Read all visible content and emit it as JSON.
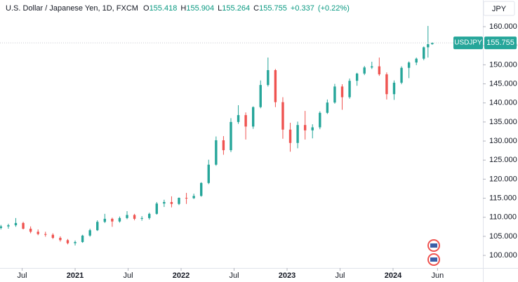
{
  "chart_data": {
    "type": "candlestick",
    "title": "U.S. Dollar / Japanese Yen, 1D, FXCM",
    "ohlc_labels": [
      "O",
      "H",
      "L",
      "C"
    ],
    "change": "+0.337",
    "change_pct": "(+0.22%)",
    "currency": "JPY",
    "symbol": "USDJPY",
    "up_color": "#26a69a",
    "down_color": "#ef5350",
    "x": [
      2020.3,
      2020.37,
      2020.44,
      2020.51,
      2020.58,
      2020.65,
      2020.72,
      2020.79,
      2020.86,
      2020.93,
      2021.0,
      2021.07,
      2021.14,
      2021.21,
      2021.28,
      2021.35,
      2021.42,
      2021.49,
      2021.56,
      2021.63,
      2021.7,
      2021.77,
      2021.84,
      2021.91,
      2021.98,
      2022.05,
      2022.12,
      2022.19,
      2022.26,
      2022.33,
      2022.4,
      2022.47,
      2022.54,
      2022.61,
      2022.68,
      2022.75,
      2022.82,
      2022.89,
      2022.96,
      2023.03,
      2023.1,
      2023.17,
      2023.24,
      2023.31,
      2023.38,
      2023.45,
      2023.52,
      2023.59,
      2023.66,
      2023.73,
      2023.8,
      2023.87,
      2023.94,
      2024.01,
      2024.08,
      2024.15,
      2024.22,
      2024.29,
      2024.33,
      2024.37
    ],
    "open": [
      107.2,
      107.6,
      107.9,
      108.5,
      107.0,
      106.2,
      105.6,
      105.4,
      104.6,
      104.0,
      103.2,
      103.5,
      105.2,
      106.6,
      108.8,
      109.6,
      108.9,
      109.8,
      110.6,
      109.6,
      109.8,
      110.9,
      113.6,
      114.0,
      113.5,
      115.1,
      115.0,
      115.6,
      119.0,
      123.8,
      130.2,
      127.6,
      135.0,
      136.8,
      133.8,
      138.9,
      144.7,
      148.6,
      140.2,
      133.0,
      129.5,
      134.2,
      132.8,
      133.6,
      137.4,
      140.1,
      144.3,
      141.5,
      145.8,
      147.7,
      149.3,
      149.6,
      147.5,
      142.3,
      145.3,
      149.2,
      150.6,
      151.6,
      154.6,
      155.418
    ],
    "high": [
      108.0,
      108.3,
      109.8,
      108.8,
      107.6,
      106.8,
      106.2,
      105.8,
      105.0,
      104.3,
      103.9,
      105.4,
      107.0,
      109.2,
      110.9,
      109.9,
      110.2,
      111.6,
      110.9,
      110.3,
      111.2,
      114.0,
      114.6,
      115.5,
      115.2,
      116.4,
      116.2,
      119.2,
      125.1,
      131.2,
      131.3,
      136.0,
      139.4,
      137.5,
      139.1,
      145.9,
      151.9,
      148.9,
      141.5,
      134.8,
      135.1,
      137.9,
      134.4,
      137.8,
      140.9,
      145.0,
      144.9,
      146.4,
      147.9,
      149.7,
      150.8,
      151.9,
      148.0,
      145.9,
      149.6,
      150.9,
      151.9,
      154.8,
      160.2,
      155.904
    ],
    "low": [
      106.8,
      107.0,
      107.5,
      106.8,
      105.8,
      105.3,
      104.9,
      104.3,
      103.6,
      102.9,
      102.6,
      103.3,
      104.9,
      106.4,
      108.5,
      107.5,
      108.6,
      109.5,
      109.2,
      109.1,
      109.4,
      110.7,
      112.7,
      112.6,
      113.2,
      113.5,
      114.8,
      115.4,
      118.7,
      123.5,
      126.4,
      127.1,
      134.5,
      130.4,
      133.2,
      138.6,
      144.3,
      138.9,
      130.6,
      127.2,
      128.1,
      130.4,
      130.7,
      133.1,
      137.1,
      139.8,
      138.2,
      141.1,
      144.5,
      147.3,
      148.9,
      147.1,
      140.9,
      140.8,
      144.9,
      146.5,
      149.9,
      151.2,
      151.9,
      155.264
    ],
    "close": [
      107.6,
      107.9,
      108.5,
      107.0,
      106.2,
      105.6,
      105.4,
      104.6,
      104.0,
      103.2,
      103.5,
      105.2,
      106.6,
      108.8,
      109.6,
      108.9,
      109.8,
      110.6,
      109.6,
      109.8,
      110.9,
      113.6,
      114.0,
      113.5,
      115.1,
      115.0,
      115.6,
      119.0,
      123.8,
      130.2,
      127.6,
      135.0,
      136.8,
      133.8,
      138.9,
      144.7,
      148.6,
      140.2,
      133.0,
      129.5,
      134.2,
      132.8,
      133.6,
      137.4,
      140.1,
      144.3,
      141.5,
      145.8,
      147.7,
      149.3,
      149.6,
      147.5,
      142.3,
      145.3,
      149.2,
      150.6,
      151.6,
      154.6,
      155.4,
      155.755
    ],
    "xlim": [
      2020.291,
      2024.848
    ],
    "xticks": [
      {
        "value": 2020.5,
        "label": "Jul"
      },
      2021,
      {
        "value": 2021.5,
        "label": "Jul"
      },
      2022,
      {
        "value": 2022.5,
        "label": "Jul"
      },
      2023,
      {
        "value": 2023.5,
        "label": "Jul"
      },
      2024,
      {
        "value": 2024.42,
        "label": "Jun"
      }
    ],
    "ylim": [
      96.7,
      167.0
    ],
    "yticks": [
      {
        "value": 100,
        "label": "100.000"
      },
      {
        "value": 105,
        "label": "105.000"
      },
      {
        "value": 110,
        "label": "110.000"
      },
      {
        "value": 115,
        "label": "115.000"
      },
      {
        "value": 120,
        "label": "120.000"
      },
      {
        "value": 125,
        "label": "125.000"
      },
      {
        "value": 130,
        "label": "130.000"
      },
      {
        "value": 135,
        "label": "135.000"
      },
      {
        "value": 140,
        "label": "140.000"
      },
      {
        "value": 145,
        "label": "145.000"
      },
      {
        "value": 150,
        "label": "150.000"
      },
      {
        "value": 155,
        "label": "155.000"
      },
      {
        "value": 160,
        "label": "160.000"
      }
    ]
  }
}
